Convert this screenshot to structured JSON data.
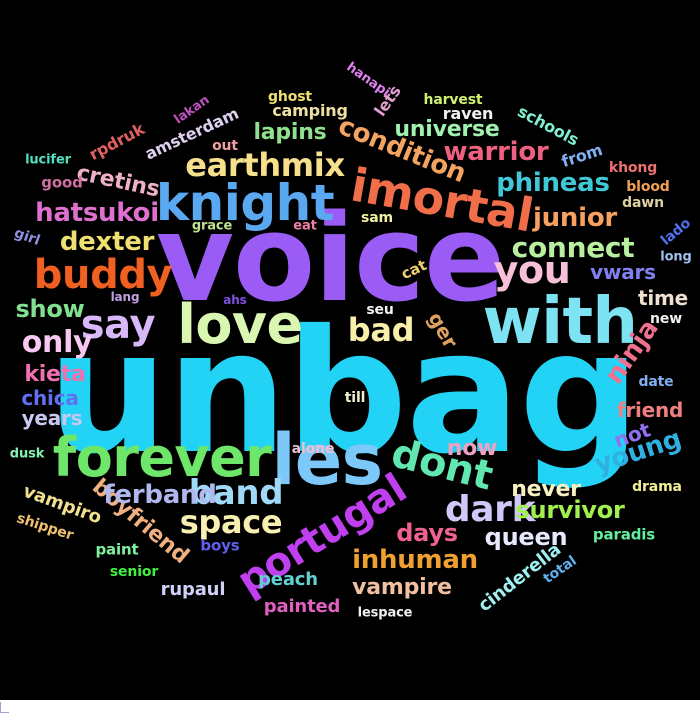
{
  "words": [
    {
      "text": "unbag",
      "color": "#22d3f5"
    },
    {
      "text": "voice",
      "color": "#9b5cf6"
    },
    {
      "text": "with",
      "color": "#7de3f2"
    },
    {
      "text": "les",
      "color": "#7cc8f8"
    },
    {
      "text": "forever",
      "color": "#6ee66a"
    },
    {
      "text": "love",
      "color": "#d9f7b0"
    },
    {
      "text": "knight",
      "color": "#5aa8f0"
    },
    {
      "text": "imortal",
      "color": "#f06e4a"
    },
    {
      "text": "earthmix",
      "color": "#f7e08c"
    },
    {
      "text": "buddy",
      "color": "#f06020"
    },
    {
      "text": "say",
      "color": "#d8b8f8"
    },
    {
      "text": "you",
      "color": "#f8c0d8"
    },
    {
      "text": "portugal",
      "color": "#c040f0"
    },
    {
      "text": "dont",
      "color": "#60e8b0"
    },
    {
      "text": "band",
      "color": "#a0d8f8"
    },
    {
      "text": "dark",
      "color": "#d0c8f8"
    },
    {
      "text": "bad",
      "color": "#f8f0a8"
    },
    {
      "text": "space",
      "color": "#f8f0b0"
    },
    {
      "text": "connect",
      "color": "#b8f0a0"
    },
    {
      "text": "only",
      "color": "#f8c8f0"
    },
    {
      "text": "condition",
      "color": "#f4a460"
    },
    {
      "text": "warrior",
      "color": "#f06080"
    },
    {
      "text": "phineas",
      "color": "#40c8d8"
    },
    {
      "text": "hatsukoi",
      "color": "#e070d0"
    },
    {
      "text": "junior",
      "color": "#f8a060"
    },
    {
      "text": "dexter",
      "color": "#f0e070"
    },
    {
      "text": "show",
      "color": "#80e090"
    },
    {
      "text": "ninja",
      "color": "#f07090"
    },
    {
      "text": "young",
      "color": "#30b0e0"
    },
    {
      "text": "boyfriend",
      "color": "#f0b080"
    },
    {
      "text": "ferband",
      "color": "#b0b8f0"
    },
    {
      "text": "inhuman",
      "color": "#f0a030"
    },
    {
      "text": "survivor",
      "color": "#a0f050"
    },
    {
      "text": "queen",
      "color": "#e8e8ff"
    },
    {
      "text": "days",
      "color": "#f06090"
    },
    {
      "text": "vampire",
      "color": "#f0c0a0"
    },
    {
      "text": "never",
      "color": "#f8f0c0"
    },
    {
      "text": "lapins",
      "color": "#90e090"
    },
    {
      "text": "universe",
      "color": "#a0f0b0"
    },
    {
      "text": "cretins",
      "color": "#f0b0c8"
    },
    {
      "text": "kieta",
      "color": "#f070b0"
    },
    {
      "text": "years",
      "color": "#c8c8f0"
    },
    {
      "text": "vwars",
      "color": "#8080f0"
    },
    {
      "text": "time",
      "color": "#f0e0d0"
    },
    {
      "text": "friend",
      "color": "#f08080"
    },
    {
      "text": "chica",
      "color": "#6070f0"
    },
    {
      "text": "vampiro",
      "color": "#f0e090"
    },
    {
      "text": "not",
      "color": "#9070f0"
    },
    {
      "text": "now",
      "color": "#f0a0c0"
    },
    {
      "text": "ger",
      "color": "#e0a060"
    },
    {
      "text": "cinderella",
      "color": "#a0f0f0"
    },
    {
      "text": "peach",
      "color": "#60d0d0"
    },
    {
      "text": "painted",
      "color": "#e060c0"
    },
    {
      "text": "rupaul",
      "color": "#d0d0f8"
    },
    {
      "text": "camping",
      "color": "#f0e0a0"
    },
    {
      "text": "amsterdam",
      "color": "#e0d0f0"
    },
    {
      "text": "rpdruk",
      "color": "#e06060"
    },
    {
      "text": "schools",
      "color": "#80f0d0"
    },
    {
      "text": "from",
      "color": "#80b0f0"
    },
    {
      "text": "raven",
      "color": "#f0f0f0"
    },
    {
      "text": "lets",
      "color": "#e0a0d0"
    },
    {
      "text": "ghost",
      "color": "#f0e070"
    },
    {
      "text": "harvest",
      "color": "#d0f070"
    },
    {
      "text": "hanapi",
      "color": "#e080f0"
    },
    {
      "text": "lakan",
      "color": "#c050c0"
    },
    {
      "text": "lucifer",
      "color": "#50e0c0"
    },
    {
      "text": "good",
      "color": "#d070a0"
    },
    {
      "text": "out",
      "color": "#f0a0a0"
    },
    {
      "text": "girl",
      "color": "#9090e0"
    },
    {
      "text": "grace",
      "color": "#c0e090"
    },
    {
      "text": "sam",
      "color": "#f0f0a0"
    },
    {
      "text": "eat",
      "color": "#f080a0"
    },
    {
      "text": "cat",
      "color": "#f0d070"
    },
    {
      "text": "seu",
      "color": "#f0f0f0"
    },
    {
      "text": "lang",
      "color": "#c0a0e0"
    },
    {
      "text": "ahs",
      "color": "#8050e0"
    },
    {
      "text": "till",
      "color": "#f0f0d0"
    },
    {
      "text": "alone",
      "color": "#f0c0d0"
    },
    {
      "text": "khong",
      "color": "#f07070"
    },
    {
      "text": "blood",
      "color": "#f0a050"
    },
    {
      "text": "dawn",
      "color": "#e0d0a0"
    },
    {
      "text": "lado",
      "color": "#5070f0"
    },
    {
      "text": "long",
      "color": "#a0c0f0"
    },
    {
      "text": "new",
      "color": "#f0f0f0"
    },
    {
      "text": "date",
      "color": "#80b0f0"
    },
    {
      "text": "drama",
      "color": "#f0f090"
    },
    {
      "text": "paradis",
      "color": "#60f0a0"
    },
    {
      "text": "total",
      "color": "#60b0f0"
    },
    {
      "text": "dusk",
      "color": "#80f0b0"
    },
    {
      "text": "shipper",
      "color": "#f0c070"
    },
    {
      "text": "paint",
      "color": "#80f0a0"
    },
    {
      "text": "boys",
      "color": "#6060f0"
    },
    {
      "text": "senior",
      "color": "#40f040"
    },
    {
      "text": "lespace",
      "color": "#f0f0f0"
    }
  ]
}
